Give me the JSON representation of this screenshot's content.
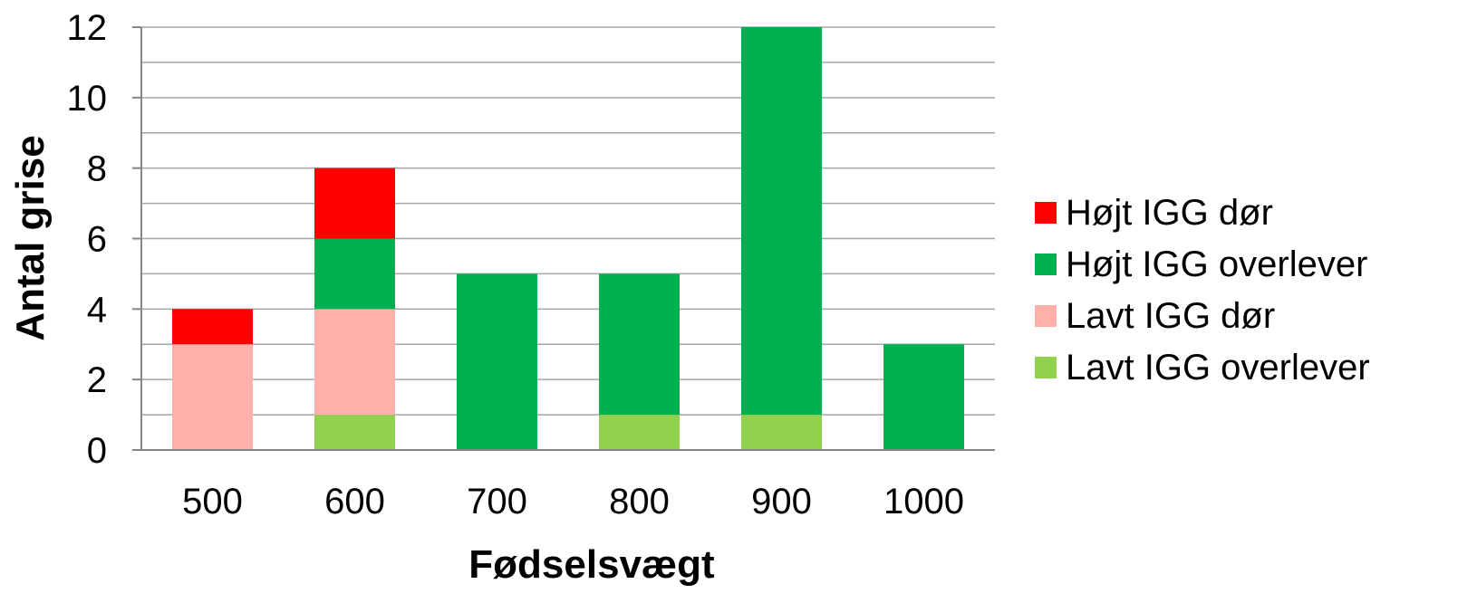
{
  "chart_data": {
    "type": "bar",
    "stacked": true,
    "categories": [
      "500",
      "600",
      "700",
      "800",
      "900",
      "1000"
    ],
    "series": [
      {
        "name": "Lavt IGG overlever",
        "color": "#92D050",
        "values": [
          0,
          1,
          0,
          1,
          1,
          0
        ]
      },
      {
        "name": "Lavt IGG dør",
        "color": "#FFB0AA",
        "values": [
          3,
          3,
          0,
          0,
          0,
          0
        ]
      },
      {
        "name": "Højt IGG overlever",
        "color": "#00B050",
        "values": [
          0,
          2,
          5,
          4,
          11,
          3
        ]
      },
      {
        "name": "Højt IGG dør",
        "color": "#FF0000",
        "values": [
          1,
          2,
          0,
          0,
          0,
          0
        ]
      }
    ],
    "legend_order": [
      "Højt IGG dør",
      "Højt IGG overlever",
      "Lavt IGG dør",
      "Lavt IGG overlever"
    ],
    "xlabel": "Fødselsvægt",
    "ylabel": "Antal grise",
    "ylim": [
      0,
      12
    ],
    "yticks": [
      "0",
      "2",
      "4",
      "6",
      "8",
      "10",
      "12"
    ],
    "grid": true,
    "legend_position": "right"
  }
}
